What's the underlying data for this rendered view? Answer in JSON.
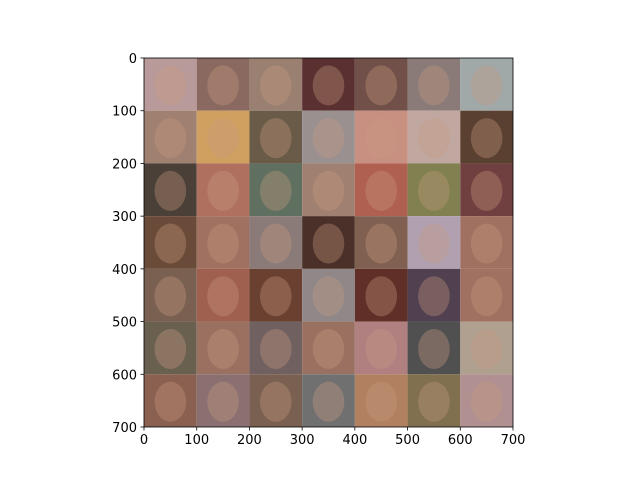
{
  "chart_data": {
    "type": "image",
    "xlim": [
      0,
      700
    ],
    "ylim": [
      700,
      0
    ],
    "xticks": [
      0,
      100,
      200,
      300,
      400,
      500,
      600,
      700
    ],
    "yticks": [
      0,
      100,
      200,
      300,
      400,
      500,
      600,
      700
    ]
  }
}
